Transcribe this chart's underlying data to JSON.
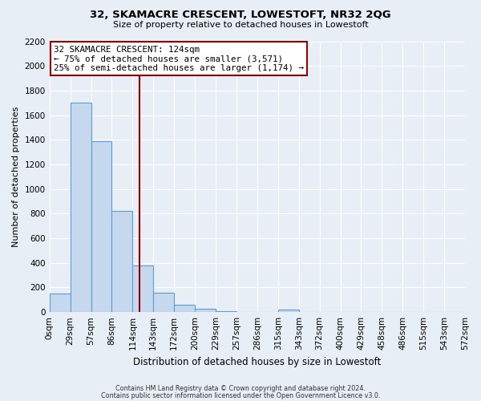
{
  "title": "32, SKAMACRE CRESCENT, LOWESTOFT, NR32 2QG",
  "subtitle": "Size of property relative to detached houses in Lowestoft",
  "xlabel": "Distribution of detached houses by size in Lowestoft",
  "ylabel": "Number of detached properties",
  "bin_labels": [
    "0sqm",
    "29sqm",
    "57sqm",
    "86sqm",
    "114sqm",
    "143sqm",
    "172sqm",
    "200sqm",
    "229sqm",
    "257sqm",
    "286sqm",
    "315sqm",
    "343sqm",
    "372sqm",
    "400sqm",
    "429sqm",
    "458sqm",
    "486sqm",
    "515sqm",
    "543sqm",
    "572sqm"
  ],
  "bar_heights": [
    150,
    1700,
    1390,
    820,
    380,
    160,
    60,
    25,
    10,
    0,
    0,
    20,
    0,
    0,
    0,
    0,
    0,
    0,
    0,
    0
  ],
  "bar_color": "#c5d8ed",
  "bar_edge_color": "#5a9fd4",
  "vline_x": 4.28,
  "vline_color": "#990000",
  "annotation_title": "32 SKAMACRE CRESCENT: 124sqm",
  "annotation_line1": "← 75% of detached houses are smaller (3,571)",
  "annotation_line2": "25% of semi-detached houses are larger (1,174) →",
  "annotation_box_color": "#ffffff",
  "annotation_box_edge_color": "#990000",
  "ylim": [
    0,
    2200
  ],
  "yticks": [
    0,
    200,
    400,
    600,
    800,
    1000,
    1200,
    1400,
    1600,
    1800,
    2000,
    2200
  ],
  "background_color": "#e8eef5",
  "grid_color": "#ffffff",
  "footer1": "Contains HM Land Registry data © Crown copyright and database right 2024.",
  "footer2": "Contains public sector information licensed under the Open Government Licence v3.0."
}
